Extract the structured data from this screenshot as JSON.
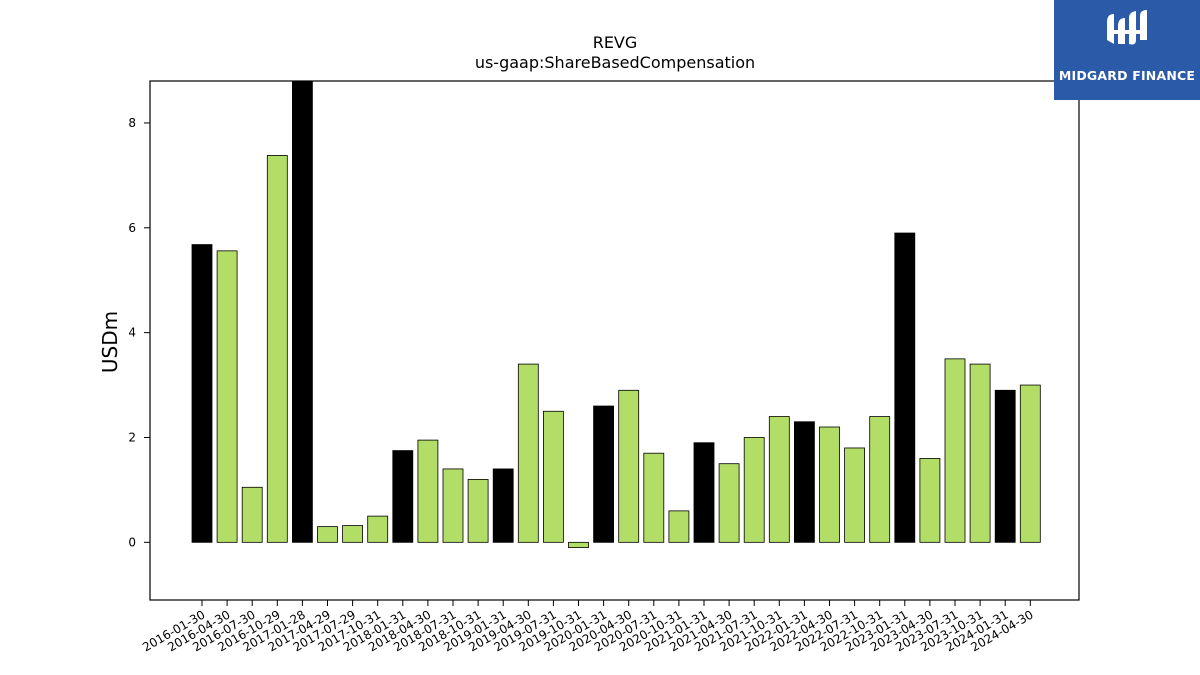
{
  "chart_data": {
    "type": "bar",
    "title": "REVG",
    "subtitle": "us-gaap:ShareBasedCompensation",
    "xlabel": "",
    "ylabel": "USDm",
    "ylim": [
      -1.1,
      8.8
    ],
    "yticks": [
      0,
      2,
      4,
      6,
      8
    ],
    "grid": false,
    "categories": [
      "2016-01-30",
      "2016-04-30",
      "2016-07-30",
      "2016-10-29",
      "2017-01-28",
      "2017-04-29",
      "2017-07-29",
      "2017-10-31",
      "2018-01-31",
      "2018-04-30",
      "2018-07-31",
      "2018-10-31",
      "2019-01-31",
      "2019-04-30",
      "2019-07-31",
      "2019-10-31",
      "2020-01-31",
      "2020-04-30",
      "2020-07-31",
      "2020-10-31",
      "2021-01-31",
      "2021-04-30",
      "2021-07-31",
      "2021-10-31",
      "2022-01-31",
      "2022-04-30",
      "2022-07-31",
      "2022-10-31",
      "2023-01-31",
      "2023-04-30",
      "2023-07-31",
      "2023-10-31",
      "2024-01-31",
      "2024-04-30"
    ],
    "values": [
      5.68,
      5.56,
      1.05,
      7.38,
      8.8,
      0.3,
      0.32,
      0.5,
      1.75,
      1.95,
      1.4,
      1.2,
      1.4,
      3.4,
      2.5,
      -0.1,
      2.6,
      2.9,
      1.7,
      0.6,
      1.9,
      1.5,
      2.0,
      2.4,
      2.3,
      2.2,
      1.8,
      2.4,
      5.9,
      1.6,
      3.5,
      3.4,
      2.9,
      3.0
    ],
    "bar_kinds": [
      "annual",
      "quarter",
      "quarter",
      "quarter",
      "annual",
      "quarter",
      "quarter",
      "quarter",
      "annual",
      "quarter",
      "quarter",
      "quarter",
      "annual",
      "quarter",
      "quarter",
      "quarter",
      "annual",
      "quarter",
      "quarter",
      "quarter",
      "annual",
      "quarter",
      "quarter",
      "quarter",
      "annual",
      "quarter",
      "quarter",
      "quarter",
      "annual",
      "quarter",
      "quarter",
      "quarter",
      "annual",
      "quarter"
    ],
    "colors": {
      "annual": "#000000",
      "quarter": "#b2dd67",
      "edge": "#000000"
    }
  },
  "branding": {
    "logo_text": "MIDGARD FINANCE",
    "logo_bg": "#2b5aa8"
  }
}
